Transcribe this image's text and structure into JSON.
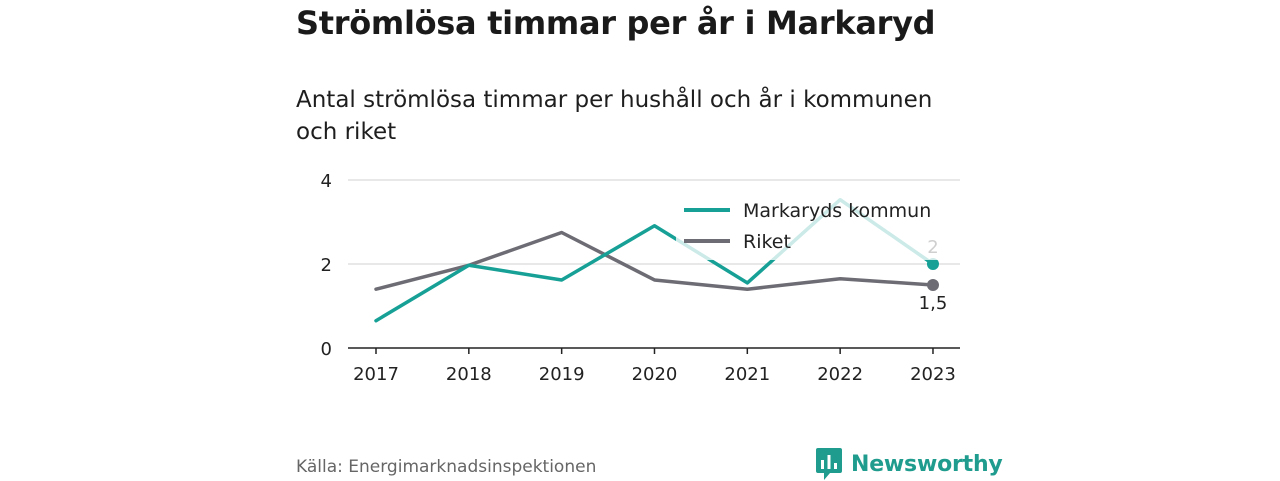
{
  "title": "Strömlösa timmar per år i Markaryd",
  "subtitle": "Antal strömlösa timmar per hushåll och år i kommunen och riket",
  "source": "Källa: Energimarknadsinspektionen",
  "brand": {
    "name": "Newsworthy",
    "icon": "bar-chart-speech-bubble-icon",
    "color": "#1f9c8d"
  },
  "chart_data": {
    "type": "line",
    "x": [
      "2017",
      "2018",
      "2019",
      "2020",
      "2021",
      "2022",
      "2023"
    ],
    "ylim": [
      0,
      4
    ],
    "yticks": [
      "0",
      "2",
      "4"
    ],
    "grid": true,
    "legend_position": "top-right",
    "series": [
      {
        "name": "Markaryds kommun",
        "color": "#16a096",
        "values": [
          0.65,
          1.97,
          1.62,
          2.91,
          1.55,
          3.53,
          2.0
        ],
        "end_label": "2"
      },
      {
        "name": "Riket",
        "color": "#6d6c74",
        "values": [
          1.4,
          1.97,
          2.75,
          1.62,
          1.4,
          1.65,
          1.5
        ],
        "end_label": "1,5"
      }
    ]
  }
}
